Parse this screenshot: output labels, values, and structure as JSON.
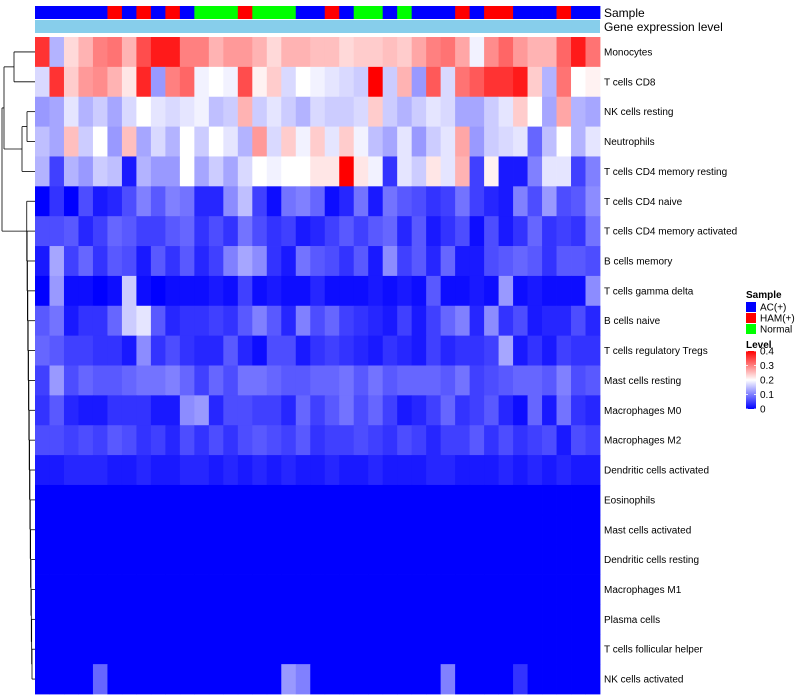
{
  "chart_data": {
    "type": "heatmap",
    "title": "",
    "annotation_tracks": [
      {
        "name": "Sample",
        "legend_title": "Sample",
        "categories": [
          "AC(+)",
          "HAM(+)",
          "Normal"
        ],
        "colors": {
          "AC(+)": "#0000ff",
          "HAM(+)": "#ff0000",
          "Normal": "#00ff00"
        },
        "values": [
          "AC(+)",
          "AC(+)",
          "AC(+)",
          "AC(+)",
          "AC(+)",
          "HAM(+)",
          "AC(+)",
          "HAM(+)",
          "AC(+)",
          "HAM(+)",
          "AC(+)",
          "Normal",
          "Normal",
          "Normal",
          "HAM(+)",
          "Normal",
          "Normal",
          "Normal",
          "AC(+)",
          "AC(+)",
          "HAM(+)",
          "AC(+)",
          "Normal",
          "Normal",
          "AC(+)",
          "Normal",
          "AC(+)",
          "AC(+)",
          "AC(+)",
          "HAM(+)",
          "AC(+)",
          "HAM(+)",
          "HAM(+)",
          "AC(+)",
          "AC(+)",
          "AC(+)",
          "HAM(+)",
          "AC(+)",
          "AC(+)"
        ]
      },
      {
        "name": "Gene expression level",
        "color": "#87ceeb"
      }
    ],
    "rows": [
      "Monocytes",
      "T cells CD8",
      "NK cells resting",
      "Neutrophils",
      "T cells CD4 memory resting",
      "T cells CD4 naive",
      "T cells CD4 memory activated",
      "B cells memory",
      "T cells gamma delta",
      "B cells naive",
      "T cells regulatory  Tregs",
      "Mast cells resting",
      "Macrophages M0",
      "Macrophages M2",
      "Dendritic cells activated",
      "Eosinophils",
      "Mast cells activated",
      "Dendritic cells resting",
      "Macrophages M1",
      "Plasma cells",
      "T cells follicular helper",
      "NK cells activated"
    ],
    "legend": {
      "title": "Level",
      "ticks": [
        "0.4",
        "0.3",
        "0.2",
        "0.1",
        "0"
      ],
      "range": [
        0,
        0.4
      ],
      "colors": {
        "low": "#0000ff",
        "mid": "#ffffff",
        "high": "#ff0000"
      }
    },
    "values": [
      [
        0.36,
        0.14,
        0.23,
        0.26,
        0.3,
        0.31,
        0.26,
        0.34,
        0.38,
        0.38,
        0.3,
        0.3,
        0.26,
        0.28,
        0.28,
        0.26,
        0.23,
        0.26,
        0.26,
        0.25,
        0.25,
        0.23,
        0.24,
        0.24,
        0.25,
        0.24,
        0.27,
        0.3,
        0.31,
        0.27,
        0.19,
        0.29,
        0.32,
        0.28,
        0.26,
        0.26,
        0.32,
        0.38,
        0.31
      ],
      [
        0.17,
        0.36,
        0.24,
        0.28,
        0.29,
        0.26,
        0.22,
        0.37,
        0.12,
        0.3,
        0.32,
        0.19,
        0.2,
        0.19,
        0.34,
        0.21,
        0.24,
        0.17,
        0.2,
        0.19,
        0.18,
        0.17,
        0.16,
        0.4,
        0.16,
        0.26,
        0.12,
        0.33,
        0.17,
        0.31,
        0.33,
        0.36,
        0.36,
        0.38,
        0.24,
        0.14,
        0.31,
        0.2,
        0.21
      ],
      [
        0.12,
        0.13,
        0.18,
        0.14,
        0.16,
        0.13,
        0.17,
        0.2,
        0.18,
        0.17,
        0.18,
        0.19,
        0.15,
        0.16,
        0.26,
        0.16,
        0.18,
        0.16,
        0.14,
        0.17,
        0.16,
        0.16,
        0.17,
        0.24,
        0.16,
        0.14,
        0.16,
        0.18,
        0.17,
        0.13,
        0.13,
        0.16,
        0.18,
        0.24,
        0.2,
        0.13,
        0.27,
        0.14,
        0.13
      ],
      [
        0.15,
        0.13,
        0.25,
        0.16,
        0.2,
        0.12,
        0.25,
        0.13,
        0.17,
        0.14,
        0.2,
        0.16,
        0.2,
        0.18,
        0.14,
        0.28,
        0.17,
        0.24,
        0.19,
        0.24,
        0.18,
        0.24,
        0.19,
        0.15,
        0.13,
        0.18,
        0.12,
        0.16,
        0.18,
        0.27,
        0.12,
        0.16,
        0.17,
        0.18,
        0.08,
        0.15,
        0.2,
        0.14,
        0.18
      ],
      [
        0.14,
        0.05,
        0.14,
        0.12,
        0.16,
        0.15,
        0.02,
        0.14,
        0.12,
        0.12,
        0.2,
        0.13,
        0.16,
        0.13,
        0.17,
        0.2,
        0.19,
        0.2,
        0.2,
        0.22,
        0.22,
        0.4,
        0.22,
        0.19,
        0.04,
        0.18,
        0.16,
        0.22,
        0.18,
        0.26,
        0.05,
        0.21,
        0.02,
        0.02,
        0.1,
        0.18,
        0.18,
        0.05,
        0.1
      ],
      [
        0.0,
        0.04,
        0.0,
        0.06,
        0.02,
        0.03,
        0.06,
        0.1,
        0.07,
        0.1,
        0.09,
        0.03,
        0.03,
        0.11,
        0.15,
        0.05,
        0.01,
        0.09,
        0.1,
        0.08,
        0.01,
        0.03,
        0.09,
        0.02,
        0.09,
        0.07,
        0.06,
        0.04,
        0.05,
        0.09,
        0.05,
        0.03,
        0.02,
        0.1,
        0.06,
        0.12,
        0.06,
        0.07,
        0.11
      ],
      [
        0.06,
        0.06,
        0.07,
        0.03,
        0.05,
        0.08,
        0.07,
        0.05,
        0.05,
        0.07,
        0.08,
        0.04,
        0.06,
        0.04,
        0.09,
        0.06,
        0.04,
        0.05,
        0.02,
        0.03,
        0.05,
        0.07,
        0.05,
        0.07,
        0.08,
        0.03,
        0.07,
        0.02,
        0.04,
        0.06,
        0.01,
        0.06,
        0.02,
        0.04,
        0.08,
        0.04,
        0.05,
        0.04,
        0.09
      ],
      [
        0.02,
        0.13,
        0.05,
        0.08,
        0.04,
        0.07,
        0.06,
        0.02,
        0.07,
        0.04,
        0.07,
        0.03,
        0.05,
        0.1,
        0.13,
        0.11,
        0.04,
        0.02,
        0.09,
        0.07,
        0.06,
        0.04,
        0.07,
        0.02,
        0.11,
        0.05,
        0.07,
        0.03,
        0.08,
        0.02,
        0.02,
        0.06,
        0.07,
        0.08,
        0.07,
        0.04,
        0.07,
        0.07,
        0.06
      ],
      [
        0.0,
        0.12,
        0.01,
        0.01,
        0.0,
        0.01,
        0.16,
        0.01,
        0.0,
        0.01,
        0.01,
        0.01,
        0.02,
        0.01,
        0.05,
        0.01,
        0.02,
        0.01,
        0.01,
        0.03,
        0.01,
        0.01,
        0.01,
        0.02,
        0.01,
        0.02,
        0.01,
        0.07,
        0.01,
        0.01,
        0.02,
        0.01,
        0.12,
        0.01,
        0.02,
        0.01,
        0.01,
        0.01,
        0.11
      ],
      [
        0.07,
        0.09,
        0.02,
        0.04,
        0.04,
        0.08,
        0.16,
        0.18,
        0.07,
        0.03,
        0.04,
        0.04,
        0.05,
        0.04,
        0.07,
        0.1,
        0.07,
        0.03,
        0.1,
        0.06,
        0.08,
        0.05,
        0.04,
        0.03,
        0.02,
        0.05,
        0.02,
        0.05,
        0.08,
        0.1,
        0.03,
        0.11,
        0.04,
        0.06,
        0.02,
        0.03,
        0.03,
        0.06,
        0.03
      ],
      [
        0.08,
        0.07,
        0.05,
        0.05,
        0.04,
        0.04,
        0.02,
        0.11,
        0.04,
        0.06,
        0.04,
        0.03,
        0.03,
        0.07,
        0.03,
        0.01,
        0.06,
        0.06,
        0.02,
        0.04,
        0.05,
        0.04,
        0.03,
        0.02,
        0.04,
        0.03,
        0.02,
        0.05,
        0.03,
        0.04,
        0.04,
        0.05,
        0.13,
        0.02,
        0.04,
        0.02,
        0.05,
        0.04,
        0.04
      ],
      [
        0.05,
        0.12,
        0.06,
        0.08,
        0.07,
        0.07,
        0.08,
        0.09,
        0.09,
        0.1,
        0.08,
        0.05,
        0.08,
        0.06,
        0.09,
        0.09,
        0.08,
        0.07,
        0.07,
        0.08,
        0.08,
        0.09,
        0.07,
        0.09,
        0.07,
        0.08,
        0.08,
        0.08,
        0.07,
        0.09,
        0.05,
        0.06,
        0.07,
        0.08,
        0.08,
        0.07,
        0.1,
        0.06,
        0.07
      ],
      [
        0.04,
        0.07,
        0.03,
        0.02,
        0.02,
        0.04,
        0.04,
        0.04,
        0.02,
        0.02,
        0.11,
        0.12,
        0.03,
        0.06,
        0.06,
        0.05,
        0.05,
        0.03,
        0.08,
        0.05,
        0.07,
        0.09,
        0.06,
        0.08,
        0.05,
        0.02,
        0.03,
        0.05,
        0.08,
        0.04,
        0.05,
        0.07,
        0.03,
        0.01,
        0.08,
        0.02,
        0.09,
        0.04,
        0.03
      ],
      [
        0.06,
        0.06,
        0.05,
        0.06,
        0.05,
        0.07,
        0.06,
        0.04,
        0.05,
        0.03,
        0.06,
        0.04,
        0.06,
        0.04,
        0.06,
        0.07,
        0.06,
        0.05,
        0.07,
        0.04,
        0.05,
        0.05,
        0.06,
        0.05,
        0.04,
        0.06,
        0.05,
        0.03,
        0.05,
        0.05,
        0.07,
        0.04,
        0.06,
        0.04,
        0.05,
        0.06,
        0.02,
        0.06,
        0.05
      ],
      [
        0.02,
        0.02,
        0.03,
        0.03,
        0.03,
        0.02,
        0.02,
        0.03,
        0.02,
        0.02,
        0.03,
        0.03,
        0.02,
        0.03,
        0.02,
        0.03,
        0.02,
        0.03,
        0.02,
        0.02,
        0.03,
        0.02,
        0.02,
        0.03,
        0.02,
        0.02,
        0.02,
        0.03,
        0.03,
        0.02,
        0.02,
        0.02,
        0.03,
        0.02,
        0.03,
        0.02,
        0.03,
        0.02,
        0.02
      ],
      [
        0.0,
        0.0,
        0.0,
        0.0,
        0.0,
        0.0,
        0.0,
        0.0,
        0.0,
        0.0,
        0.0,
        0.0,
        0.0,
        0.0,
        0.0,
        0.0,
        0.0,
        0.0,
        0.0,
        0.0,
        0.0,
        0.0,
        0.0,
        0.0,
        0.0,
        0.0,
        0.0,
        0.0,
        0.0,
        0.0,
        0.0,
        0.0,
        0.0,
        0.0,
        0.0,
        0.0,
        0.0,
        0.0,
        0.0
      ],
      [
        0.0,
        0.0,
        0.0,
        0.0,
        0.0,
        0.0,
        0.0,
        0.0,
        0.0,
        0.0,
        0.0,
        0.0,
        0.0,
        0.0,
        0.0,
        0.0,
        0.0,
        0.0,
        0.0,
        0.0,
        0.0,
        0.0,
        0.0,
        0.0,
        0.0,
        0.0,
        0.0,
        0.0,
        0.0,
        0.0,
        0.0,
        0.0,
        0.0,
        0.0,
        0.0,
        0.0,
        0.0,
        0.0,
        0.0
      ],
      [
        0.0,
        0.0,
        0.0,
        0.0,
        0.0,
        0.0,
        0.0,
        0.0,
        0.0,
        0.0,
        0.0,
        0.0,
        0.0,
        0.0,
        0.0,
        0.0,
        0.0,
        0.0,
        0.0,
        0.0,
        0.0,
        0.0,
        0.0,
        0.0,
        0.0,
        0.0,
        0.0,
        0.0,
        0.0,
        0.0,
        0.0,
        0.0,
        0.0,
        0.0,
        0.0,
        0.0,
        0.0,
        0.0,
        0.0
      ],
      [
        0.0,
        0.0,
        0.0,
        0.0,
        0.0,
        0.0,
        0.0,
        0.0,
        0.0,
        0.0,
        0.0,
        0.0,
        0.0,
        0.0,
        0.0,
        0.0,
        0.0,
        0.0,
        0.0,
        0.0,
        0.0,
        0.0,
        0.0,
        0.0,
        0.0,
        0.0,
        0.0,
        0.0,
        0.0,
        0.0,
        0.0,
        0.0,
        0.0,
        0.0,
        0.0,
        0.0,
        0.0,
        0.0,
        0.0
      ],
      [
        0.0,
        0.0,
        0.0,
        0.0,
        0.0,
        0.0,
        0.0,
        0.0,
        0.0,
        0.0,
        0.0,
        0.0,
        0.0,
        0.0,
        0.0,
        0.0,
        0.0,
        0.0,
        0.0,
        0.0,
        0.0,
        0.0,
        0.0,
        0.0,
        0.0,
        0.0,
        0.0,
        0.0,
        0.0,
        0.0,
        0.0,
        0.0,
        0.0,
        0.0,
        0.0,
        0.0,
        0.0,
        0.0,
        0.0
      ],
      [
        0.0,
        0.0,
        0.0,
        0.0,
        0.0,
        0.0,
        0.0,
        0.0,
        0.0,
        0.0,
        0.0,
        0.0,
        0.0,
        0.0,
        0.0,
        0.0,
        0.0,
        0.0,
        0.0,
        0.0,
        0.0,
        0.0,
        0.0,
        0.0,
        0.0,
        0.0,
        0.0,
        0.0,
        0.0,
        0.0,
        0.0,
        0.0,
        0.0,
        0.0,
        0.0,
        0.0,
        0.0,
        0.0,
        0.0
      ],
      [
        0.0,
        0.0,
        0.0,
        0.0,
        0.08,
        0.0,
        0.0,
        0.0,
        0.0,
        0.0,
        0.0,
        0.0,
        0.0,
        0.0,
        0.0,
        0.0,
        0.0,
        0.12,
        0.1,
        0.0,
        0.0,
        0.0,
        0.0,
        0.0,
        0.0,
        0.0,
        0.0,
        0.0,
        0.1,
        0.0,
        0.0,
        0.0,
        0.0,
        0.04,
        0.0,
        0.0,
        0.0,
        0.0,
        0.0
      ]
    ]
  }
}
